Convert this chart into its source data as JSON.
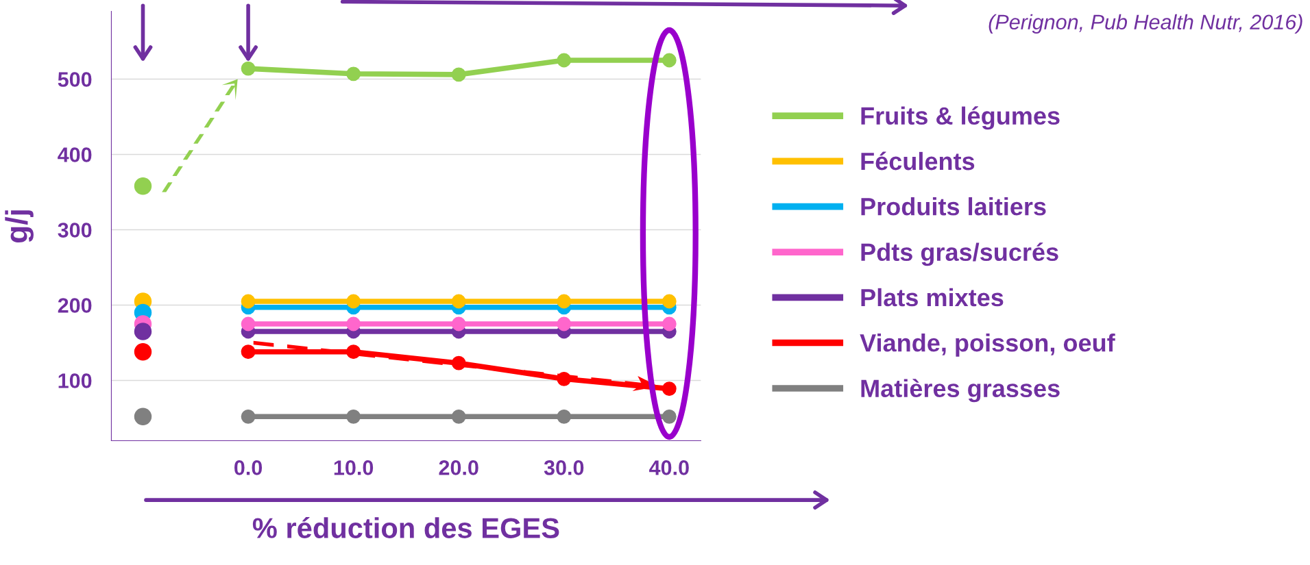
{
  "chart_data": {
    "type": "line",
    "xlabel": "% réduction des EGES",
    "ylabel": "g/j",
    "annotations": [
      "(Perignon, Pub Health Nutr, 2016)"
    ],
    "categories": [
      null,
      "0.0",
      "10.0",
      "20.0",
      "30.0",
      "40.0"
    ],
    "ylim": [
      20,
      590
    ],
    "yticks": [
      100,
      200,
      300,
      400,
      500
    ],
    "grid": "y",
    "legend": "right",
    "marker": "circle",
    "line_style": "solid",
    "series": [
      {
        "name": "Fruits & légumes",
        "color": "#92d050",
        "values": [
          null,
          514,
          507,
          506,
          525,
          525
        ]
      },
      {
        "name": "Féculents",
        "color": "#ffc000",
        "values": [
          null,
          205,
          205,
          205,
          205,
          205
        ]
      },
      {
        "name": "Produits laitiers",
        "color": "#00b0f0",
        "values": [
          null,
          197,
          197,
          197,
          197,
          197
        ]
      },
      {
        "name": "Pdts gras/sucrés",
        "color": "#ff66cc",
        "values": [
          null,
          175,
          175,
          175,
          175,
          175
        ]
      },
      {
        "name": "Plats mixtes",
        "color": "#7030a0",
        "values": [
          null,
          165,
          165,
          165,
          165,
          165
        ]
      },
      {
        "name": "Viande, poisson, oeuf",
        "color": "#ff0000",
        "values": [
          null,
          138,
          138,
          123,
          102,
          89
        ]
      },
      {
        "name": "Matières grasses",
        "color": "#808080",
        "values": [
          null,
          52,
          52,
          52,
          52,
          52
        ]
      },
      {
        "type": "scatter",
        "color": "#92d050",
        "values": [
          358,
          null,
          null,
          null,
          null,
          null
        ]
      },
      {
        "type": "scatter",
        "color": "#ffc000",
        "values": [
          205,
          null,
          null,
          null,
          null,
          null
        ]
      },
      {
        "type": "scatter",
        "color": "#00b0f0",
        "values": [
          190,
          null,
          null,
          null,
          null,
          null
        ]
      },
      {
        "type": "scatter",
        "color": "#ff66cc",
        "values": [
          175,
          null,
          null,
          null,
          null,
          null
        ]
      },
      {
        "type": "scatter",
        "color": "#7030a0",
        "values": [
          165,
          null,
          null,
          null,
          null,
          null
        ]
      },
      {
        "type": "scatter",
        "color": "#ff0000",
        "values": [
          138,
          null,
          null,
          null,
          null,
          null
        ]
      },
      {
        "type": "scatter",
        "color": "#808080",
        "values": [
          52,
          null,
          null,
          null,
          null,
          null
        ]
      }
    ]
  }
}
